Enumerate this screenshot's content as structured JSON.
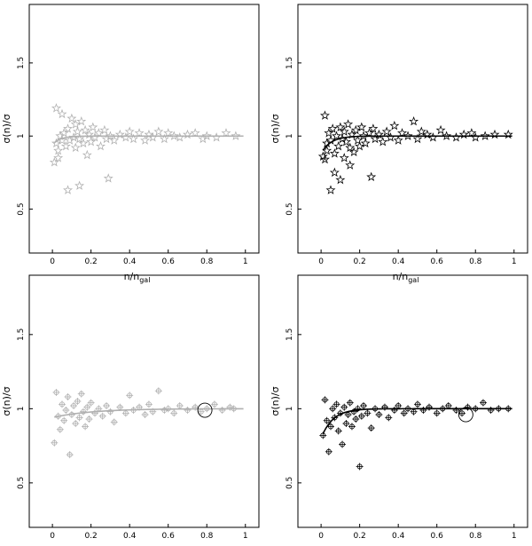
{
  "chart_data": [
    {
      "type": "scatter",
      "panel": "top-left",
      "color": "#b0b0b0",
      "marker": "star",
      "xlabel_main": "n/n",
      "xlabel_sub": "gal",
      "ylabel": "σ(n)/σ",
      "xlim": [
        -0.12,
        1.07
      ],
      "ylim": [
        0.2,
        1.9
      ],
      "xticks": [
        "0",
        "0.2",
        "0.4",
        "0.6",
        "0.8",
        "1"
      ],
      "xtick_values": [
        0,
        0.2,
        0.4,
        0.6,
        0.8,
        1
      ],
      "yticks": [
        "0.5",
        "1",
        "1.5"
      ],
      "ytick_values": [
        0.5,
        1,
        1.5
      ],
      "curve": {
        "k": 0.04,
        "a": 0.06
      },
      "points": [
        [
          0.01,
          0.82
        ],
        [
          0.02,
          1.19
        ],
        [
          0.02,
          0.95
        ],
        [
          0.03,
          0.9
        ],
        [
          0.03,
          0.85
        ],
        [
          0.04,
          1.0
        ],
        [
          0.05,
          1.15
        ],
        [
          0.05,
          0.97
        ],
        [
          0.06,
          1.02
        ],
        [
          0.07,
          0.93
        ],
        [
          0.08,
          1.05
        ],
        [
          0.08,
          0.63
        ],
        [
          0.09,
          0.97
        ],
        [
          0.1,
          1.12
        ],
        [
          0.11,
          0.99
        ],
        [
          0.12,
          1.08
        ],
        [
          0.12,
          0.92
        ],
        [
          0.13,
          1.03
        ],
        [
          0.14,
          0.98
        ],
        [
          0.14,
          0.66
        ],
        [
          0.15,
          1.1
        ],
        [
          0.16,
          0.95
        ],
        [
          0.17,
          1.04
        ],
        [
          0.18,
          0.87
        ],
        [
          0.19,
          1.01
        ],
        [
          0.2,
          0.96
        ],
        [
          0.21,
          1.06
        ],
        [
          0.22,
          0.99
        ],
        [
          0.24,
          1.02
        ],
        [
          0.25,
          0.93
        ],
        [
          0.27,
          1.04
        ],
        [
          0.28,
          0.98
        ],
        [
          0.29,
          0.71
        ],
        [
          0.3,
          1.0
        ],
        [
          0.32,
          0.97
        ],
        [
          0.35,
          1.01
        ],
        [
          0.38,
          0.99
        ],
        [
          0.4,
          1.03
        ],
        [
          0.42,
          0.98
        ],
        [
          0.45,
          1.02
        ],
        [
          0.48,
          0.97
        ],
        [
          0.5,
          1.01
        ],
        [
          0.52,
          0.99
        ],
        [
          0.55,
          1.03
        ],
        [
          0.58,
          0.98
        ],
        [
          0.6,
          1.02
        ],
        [
          0.63,
          1.0
        ],
        [
          0.66,
          0.99
        ],
        [
          0.7,
          1.01
        ],
        [
          0.74,
          1.02
        ],
        [
          0.78,
          0.98
        ],
        [
          0.8,
          1.0
        ],
        [
          0.85,
          0.99
        ],
        [
          0.9,
          1.02
        ],
        [
          0.95,
          1.0
        ]
      ]
    },
    {
      "type": "scatter",
      "panel": "top-right",
      "color": "#000000",
      "marker": "star",
      "xlabel_main": "n/n",
      "xlabel_sub": "gal",
      "ylabel": "σ(n)/σ",
      "xlim": [
        -0.12,
        1.07
      ],
      "ylim": [
        0.2,
        1.9
      ],
      "xticks": [
        "0",
        "0.2",
        "0.4",
        "0.6",
        "0.8",
        "1"
      ],
      "xtick_values": [
        0,
        0.2,
        0.4,
        0.6,
        0.8,
        1
      ],
      "yticks": [
        "0.5",
        "1",
        "1.5"
      ],
      "ytick_values": [
        0.5,
        1,
        1.5
      ],
      "curve": {
        "k": 0.05,
        "a": 0.12
      },
      "points": [
        [
          0.01,
          0.86
        ],
        [
          0.02,
          1.14
        ],
        [
          0.02,
          0.84
        ],
        [
          0.03,
          0.95
        ],
        [
          0.03,
          0.9
        ],
        [
          0.04,
          1.02
        ],
        [
          0.05,
          0.63
        ],
        [
          0.05,
          0.97
        ],
        [
          0.06,
          1.05
        ],
        [
          0.07,
          0.88
        ],
        [
          0.07,
          0.75
        ],
        [
          0.08,
          1.0
        ],
        [
          0.09,
          0.93
        ],
        [
          0.1,
          1.06
        ],
        [
          0.1,
          0.7
        ],
        [
          0.11,
          0.98
        ],
        [
          0.12,
          1.03
        ],
        [
          0.12,
          0.85
        ],
        [
          0.13,
          0.96
        ],
        [
          0.14,
          1.08
        ],
        [
          0.15,
          0.92
        ],
        [
          0.15,
          0.8
        ],
        [
          0.16,
          1.01
        ],
        [
          0.17,
          0.89
        ],
        [
          0.18,
          1.04
        ],
        [
          0.19,
          0.97
        ],
        [
          0.2,
          0.93
        ],
        [
          0.21,
          1.06
        ],
        [
          0.22,
          1.0
        ],
        [
          0.23,
          0.95
        ],
        [
          0.25,
          1.02
        ],
        [
          0.26,
          0.72
        ],
        [
          0.27,
          1.05
        ],
        [
          0.28,
          0.98
        ],
        [
          0.3,
          1.01
        ],
        [
          0.32,
          0.96
        ],
        [
          0.34,
          1.03
        ],
        [
          0.36,
          0.99
        ],
        [
          0.38,
          1.07
        ],
        [
          0.4,
          0.97
        ],
        [
          0.42,
          1.02
        ],
        [
          0.45,
          1.0
        ],
        [
          0.48,
          1.1
        ],
        [
          0.5,
          0.98
        ],
        [
          0.52,
          1.03
        ],
        [
          0.55,
          1.01
        ],
        [
          0.58,
          0.99
        ],
        [
          0.62,
          1.04
        ],
        [
          0.65,
          1.0
        ],
        [
          0.7,
          0.99
        ],
        [
          0.74,
          1.01
        ],
        [
          0.78,
          1.02
        ],
        [
          0.8,
          0.99
        ],
        [
          0.85,
          1.0
        ],
        [
          0.9,
          1.01
        ],
        [
          0.97,
          1.01
        ]
      ]
    },
    {
      "type": "scatter",
      "panel": "bottom-left",
      "color": "#b0b0b0",
      "marker": "cross-circle",
      "xlabel_main": "n/n",
      "xlabel_sub": "gal",
      "ylabel": "σ(n)/σ",
      "xlim": [
        -0.12,
        1.07
      ],
      "ylim": [
        0.2,
        1.9
      ],
      "xticks": [
        "0",
        "0.2",
        "0.4",
        "0.6",
        "0.8",
        "1"
      ],
      "xtick_values": [
        0,
        0.2,
        0.4,
        0.6,
        0.8,
        1
      ],
      "yticks": [
        "0.5",
        "1",
        "1.5"
      ],
      "ytick_values": [
        0.5,
        1,
        1.5
      ],
      "curve": {
        "k": 0.2,
        "a": 0.06
      },
      "highlight": [
        0.79,
        0.99
      ],
      "points": [
        [
          0.01,
          0.77
        ],
        [
          0.02,
          1.11
        ],
        [
          0.03,
          0.95
        ],
        [
          0.04,
          0.86
        ],
        [
          0.05,
          1.03
        ],
        [
          0.06,
          0.92
        ],
        [
          0.07,
          0.99
        ],
        [
          0.08,
          1.08
        ],
        [
          0.09,
          0.69
        ],
        [
          0.1,
          0.96
        ],
        [
          0.11,
          1.02
        ],
        [
          0.12,
          0.9
        ],
        [
          0.13,
          1.05
        ],
        [
          0.14,
          0.94
        ],
        [
          0.15,
          1.1
        ],
        [
          0.16,
          0.98
        ],
        [
          0.17,
          0.88
        ],
        [
          0.18,
          1.01
        ],
        [
          0.19,
          0.93
        ],
        [
          0.2,
          1.04
        ],
        [
          0.22,
          0.97
        ],
        [
          0.24,
          1.0
        ],
        [
          0.26,
          0.95
        ],
        [
          0.28,
          1.02
        ],
        [
          0.3,
          0.98
        ],
        [
          0.32,
          0.91
        ],
        [
          0.35,
          1.01
        ],
        [
          0.38,
          0.97
        ],
        [
          0.4,
          1.09
        ],
        [
          0.42,
          0.99
        ],
        [
          0.45,
          1.01
        ],
        [
          0.48,
          0.96
        ],
        [
          0.5,
          1.03
        ],
        [
          0.52,
          0.98
        ],
        [
          0.55,
          1.12
        ],
        [
          0.58,
          0.99
        ],
        [
          0.6,
          1.0
        ],
        [
          0.63,
          0.97
        ],
        [
          0.66,
          1.02
        ],
        [
          0.7,
          0.99
        ],
        [
          0.74,
          1.01
        ],
        [
          0.77,
          0.98
        ],
        [
          0.8,
          1.0
        ],
        [
          0.84,
          1.03
        ],
        [
          0.88,
          0.99
        ],
        [
          0.92,
          1.01
        ],
        [
          0.94,
          1.0
        ]
      ]
    },
    {
      "type": "scatter",
      "panel": "bottom-right",
      "color": "#000000",
      "marker": "cross-circle",
      "xlabel_main": "n/n",
      "xlabel_sub": "gal",
      "ylabel": "σ(n)/σ",
      "xlim": [
        -0.12,
        1.07
      ],
      "ylim": [
        0.2,
        1.9
      ],
      "xticks": [
        "0",
        "0.2",
        "0.4",
        "0.6",
        "0.8",
        "1"
      ],
      "xtick_values": [
        0,
        0.2,
        0.4,
        0.6,
        0.8,
        1
      ],
      "yticks": [
        "0.5",
        "1",
        "1.5"
      ],
      "ytick_values": [
        0.5,
        1,
        1.5
      ],
      "curve": {
        "k": 0.06,
        "a": 0.2
      },
      "highlight": [
        0.75,
        0.96
      ],
      "points": [
        [
          0.01,
          0.82
        ],
        [
          0.02,
          1.06
        ],
        [
          0.03,
          0.92
        ],
        [
          0.04,
          0.71
        ],
        [
          0.05,
          0.88
        ],
        [
          0.06,
          1.0
        ],
        [
          0.07,
          0.94
        ],
        [
          0.08,
          1.03
        ],
        [
          0.09,
          0.85
        ],
        [
          0.1,
          0.97
        ],
        [
          0.11,
          0.76
        ],
        [
          0.12,
          1.01
        ],
        [
          0.13,
          0.9
        ],
        [
          0.14,
          0.96
        ],
        [
          0.15,
          1.04
        ],
        [
          0.16,
          0.88
        ],
        [
          0.17,
          0.98
        ],
        [
          0.18,
          0.93
        ],
        [
          0.19,
          1.0
        ],
        [
          0.2,
          0.61
        ],
        [
          0.21,
          0.95
        ],
        [
          0.22,
          1.02
        ],
        [
          0.24,
          0.97
        ],
        [
          0.26,
          0.87
        ],
        [
          0.28,
          1.0
        ],
        [
          0.3,
          0.96
        ],
        [
          0.33,
          1.01
        ],
        [
          0.35,
          0.94
        ],
        [
          0.38,
          0.99
        ],
        [
          0.4,
          1.02
        ],
        [
          0.43,
          0.97
        ],
        [
          0.45,
          1.0
        ],
        [
          0.48,
          0.98
        ],
        [
          0.5,
          1.03
        ],
        [
          0.53,
          0.99
        ],
        [
          0.56,
          1.01
        ],
        [
          0.6,
          0.97
        ],
        [
          0.63,
          1.0
        ],
        [
          0.66,
          1.02
        ],
        [
          0.7,
          0.99
        ],
        [
          0.73,
          0.97
        ],
        [
          0.76,
          1.01
        ],
        [
          0.8,
          1.0
        ],
        [
          0.84,
          1.04
        ],
        [
          0.88,
          0.99
        ],
        [
          0.92,
          1.0
        ],
        [
          0.97,
          1.0
        ]
      ]
    }
  ]
}
